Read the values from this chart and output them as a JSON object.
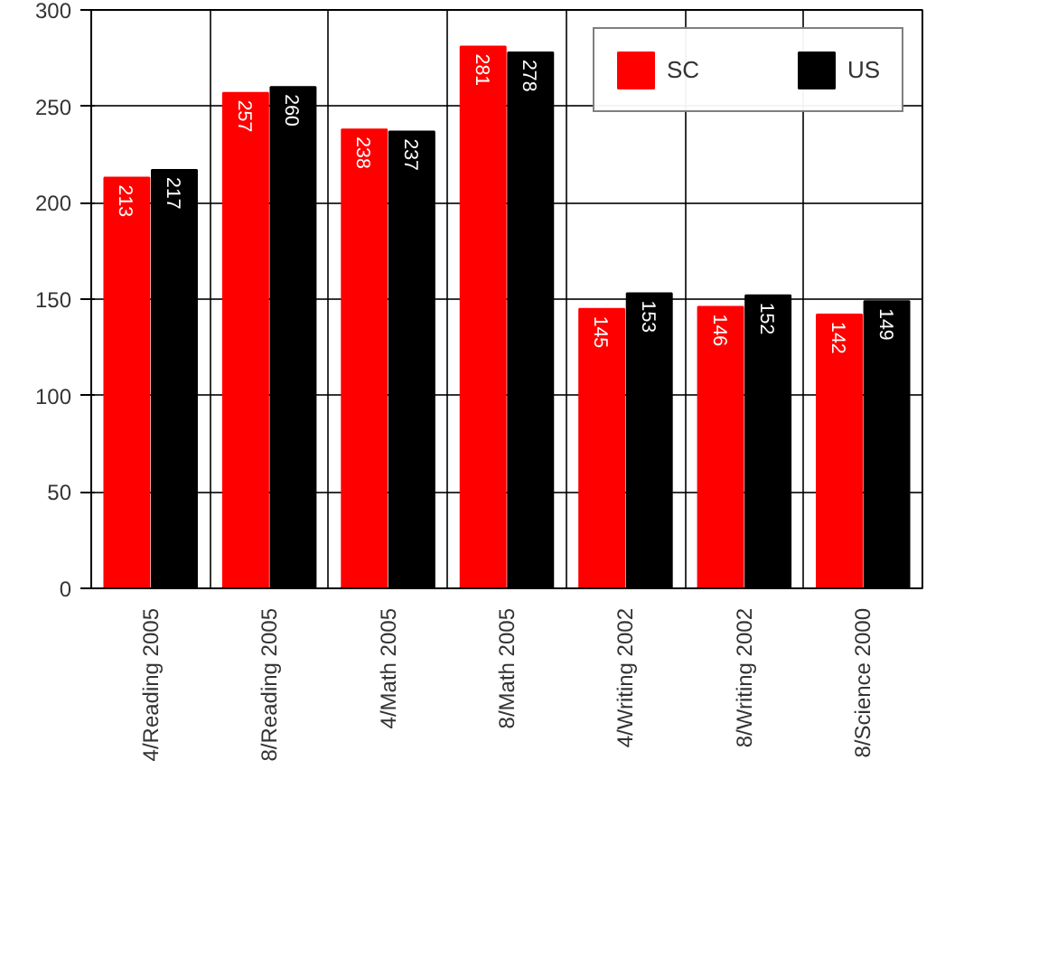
{
  "chart_data": {
    "type": "bar",
    "categories": [
      "4/Reading 2005",
      "8/Reading 2005",
      "4/Math 2005",
      "8/Math 2005",
      "4/Writing 2002",
      "8/Writing 2002",
      "8/Science 2000"
    ],
    "series": [
      {
        "name": "SC",
        "color": "#ff0000",
        "values": [
          213,
          257,
          238,
          281,
          145,
          146,
          142
        ]
      },
      {
        "name": "US",
        "color": "#000000",
        "values": [
          217,
          260,
          237,
          278,
          153,
          152,
          149
        ]
      }
    ],
    "ylim": [
      0,
      300
    ],
    "yticks": [
      0,
      50,
      100,
      150,
      200,
      250,
      300
    ],
    "grid": true,
    "legend": "top right",
    "data_labels": true
  }
}
